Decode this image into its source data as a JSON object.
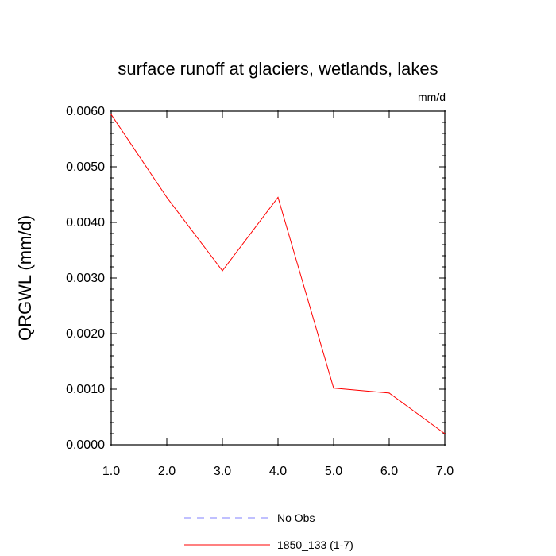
{
  "chart_data": {
    "type": "line",
    "title": "surface runoff at glaciers, wetlands, lakes",
    "units_label": "mm/d",
    "ylabel": "QRGWL  (mm/d)",
    "xlabel": "",
    "xlim": [
      1.0,
      7.0
    ],
    "ylim": [
      0.0,
      0.006
    ],
    "x_tick_labels": [
      "1.0",
      "2.0",
      "3.0",
      "4.0",
      "5.0",
      "6.0",
      "7.0"
    ],
    "y_tick_labels": [
      "0.0000",
      "0.0010",
      "0.0020",
      "0.0030",
      "0.0040",
      "0.0050",
      "0.0060"
    ],
    "x": [
      1,
      2,
      3,
      4,
      5,
      6,
      7
    ],
    "series": [
      {
        "name": "1850_133 (1-7)",
        "color": "#ff0000",
        "style": "solid",
        "values": [
          0.00594,
          0.00445,
          0.00313,
          0.00445,
          0.00102,
          0.00093,
          0.0002
        ]
      }
    ],
    "legend": [
      {
        "label": "No Obs",
        "color": "#8080ff",
        "style": "dashed"
      },
      {
        "label": "1850_133 (1-7)",
        "color": "#ff0000",
        "style": "solid"
      }
    ],
    "legend_position": "bottom",
    "grid": false
  }
}
